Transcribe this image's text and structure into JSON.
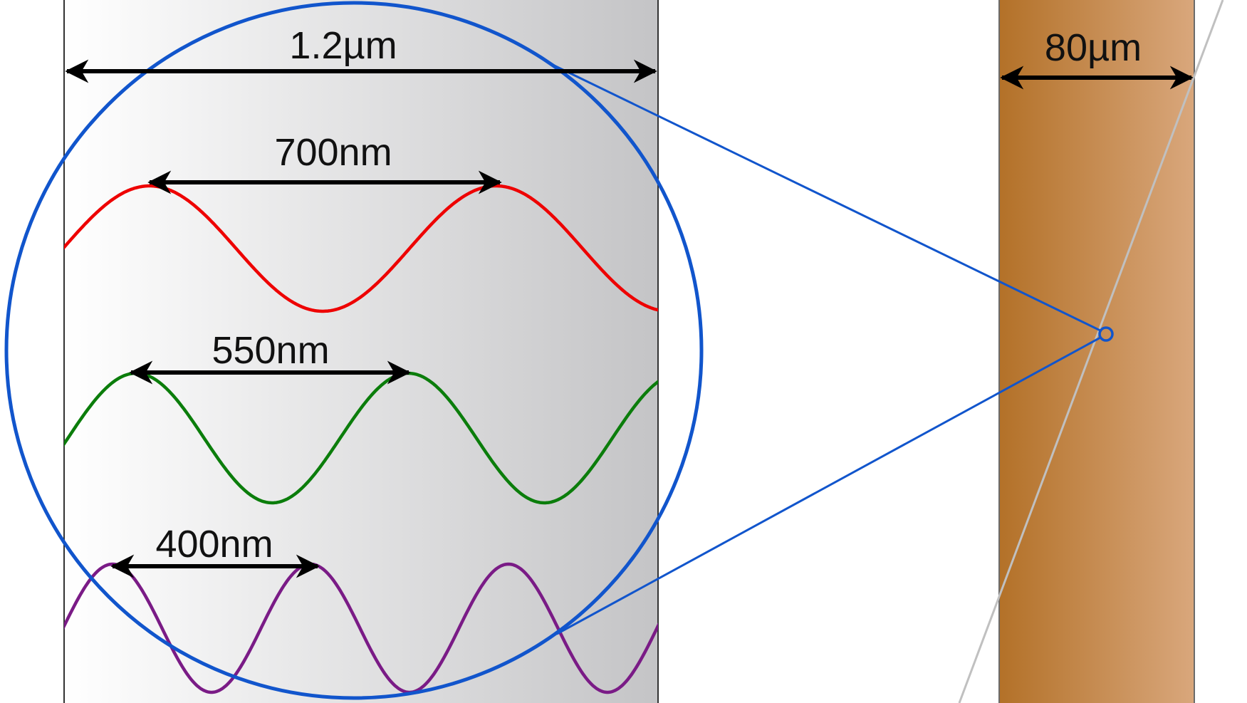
{
  "colors": {
    "panel_border": "#333333",
    "panel_gradient_start": "#ffffff",
    "panel_gradient_end": "#c4c4c6",
    "fiber_gradient_start": "#b37128",
    "fiber_gradient_end": "#d9a77c",
    "magnifier": "#1155cc",
    "ray": "#c0c0c0",
    "arrow": "#000000"
  },
  "labels": {
    "width_1_2um": "1.2µm",
    "wavelength_700": "700nm",
    "wavelength_550": "550nm",
    "wavelength_400": "400nm",
    "fiber_width": "80µm"
  },
  "waves": [
    {
      "name": "red-wave",
      "wavelength_nm": 700,
      "color": "#ee0000"
    },
    {
      "name": "green-wave",
      "wavelength_nm": 550,
      "color": "#0b7d0b"
    },
    {
      "name": "purple-wave",
      "wavelength_nm": 400,
      "color": "#7a1b86"
    }
  ]
}
